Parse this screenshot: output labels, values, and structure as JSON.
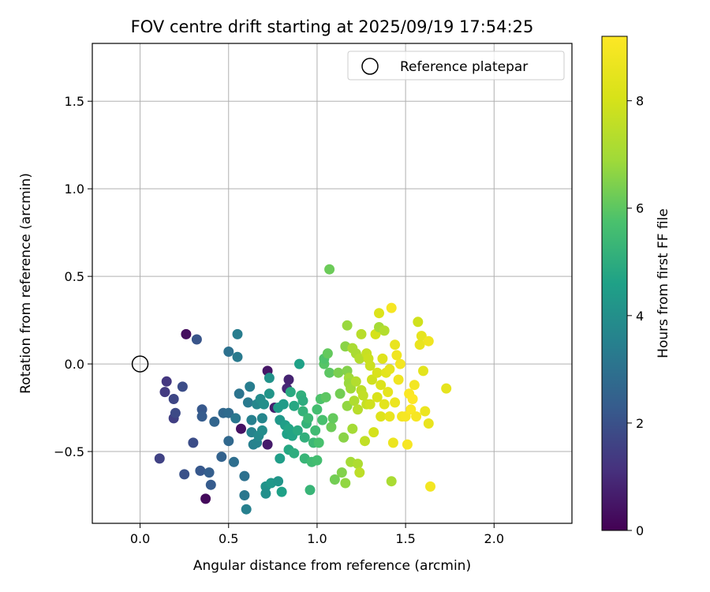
{
  "chart_data": {
    "type": "scatter",
    "title": "FOV centre drift starting at 2025/09/19 17:54:25",
    "xlabel": "Angular distance from reference (arcmin)",
    "ylabel": "Rotation from reference (arcmin)",
    "xlim": [
      -0.27,
      2.44
    ],
    "ylim": [
      -0.91,
      1.83
    ],
    "xticks": [
      0.0,
      0.5,
      1.0,
      1.5,
      2.0
    ],
    "xtick_labels": [
      "0.0",
      "0.5",
      "1.0",
      "1.5",
      "2.0"
    ],
    "yticks": [
      -0.5,
      0.0,
      0.5,
      1.0,
      1.5
    ],
    "ytick_labels": [
      "−0.5",
      "0.0",
      "0.5",
      "1.0",
      "1.5"
    ],
    "grid": true,
    "legend": {
      "position": "top-right",
      "label": "Reference platepar"
    },
    "reference_point": {
      "x": 0.0,
      "y": 0.0
    },
    "colorbar": {
      "label": "Hours from first FF file",
      "colormap": "viridis",
      "range": [
        0,
        9.2
      ],
      "ticks": [
        0,
        2,
        4,
        6,
        8
      ],
      "tick_labels": [
        "0",
        "2",
        "4",
        "6",
        "8"
      ]
    },
    "points": [
      {
        "x": 0.26,
        "y": 0.17,
        "h": 0.3
      },
      {
        "x": 0.37,
        "y": -0.77,
        "h": 0.2
      },
      {
        "x": 0.57,
        "y": -0.37,
        "h": 0.4
      },
      {
        "x": 0.72,
        "y": -0.04,
        "h": 0.5
      },
      {
        "x": 0.72,
        "y": -0.46,
        "h": 0.6
      },
      {
        "x": 0.76,
        "y": -0.25,
        "h": 0.7
      },
      {
        "x": 0.84,
        "y": -0.09,
        "h": 0.8
      },
      {
        "x": 0.83,
        "y": -0.14,
        "h": 0.9
      },
      {
        "x": 0.15,
        "y": -0.1,
        "h": 1.3
      },
      {
        "x": 0.14,
        "y": -0.16,
        "h": 1.4
      },
      {
        "x": 0.11,
        "y": -0.54,
        "h": 1.6
      },
      {
        "x": 0.19,
        "y": -0.31,
        "h": 1.5
      },
      {
        "x": 0.19,
        "y": -0.2,
        "h": 1.7
      },
      {
        "x": 0.2,
        "y": -0.28,
        "h": 1.8
      },
      {
        "x": 0.24,
        "y": -0.13,
        "h": 1.9
      },
      {
        "x": 0.25,
        "y": -0.63,
        "h": 2.0
      },
      {
        "x": 0.3,
        "y": -0.45,
        "h": 1.9
      },
      {
        "x": 0.32,
        "y": 0.14,
        "h": 2.1
      },
      {
        "x": 0.35,
        "y": -0.26,
        "h": 2.2
      },
      {
        "x": 0.35,
        "y": -0.3,
        "h": 2.3
      },
      {
        "x": 0.34,
        "y": -0.61,
        "h": 2.2
      },
      {
        "x": 0.39,
        "y": -0.62,
        "h": 2.4
      },
      {
        "x": 0.4,
        "y": -0.69,
        "h": 2.3
      },
      {
        "x": 0.42,
        "y": -0.33,
        "h": 2.6
      },
      {
        "x": 0.46,
        "y": -0.53,
        "h": 2.5
      },
      {
        "x": 0.47,
        "y": -0.28,
        "h": 2.7
      },
      {
        "x": 0.5,
        "y": -0.28,
        "h": 2.8
      },
      {
        "x": 0.5,
        "y": -0.44,
        "h": 2.7
      },
      {
        "x": 0.5,
        "y": 0.07,
        "h": 3.0
      },
      {
        "x": 0.53,
        "y": -0.56,
        "h": 2.9
      },
      {
        "x": 0.54,
        "y": -0.31,
        "h": 3.2
      },
      {
        "x": 0.55,
        "y": 0.17,
        "h": 3.4
      },
      {
        "x": 0.55,
        "y": 0.04,
        "h": 3.3
      },
      {
        "x": 0.56,
        "y": -0.17,
        "h": 3.1
      },
      {
        "x": 0.59,
        "y": -0.64,
        "h": 3.0
      },
      {
        "x": 0.59,
        "y": -0.75,
        "h": 3.2
      },
      {
        "x": 0.6,
        "y": -0.83,
        "h": 3.5
      },
      {
        "x": 0.61,
        "y": -0.22,
        "h": 3.3
      },
      {
        "x": 0.62,
        "y": -0.13,
        "h": 3.4
      },
      {
        "x": 0.63,
        "y": -0.32,
        "h": 3.5
      },
      {
        "x": 0.63,
        "y": -0.39,
        "h": 3.6
      },
      {
        "x": 0.64,
        "y": -0.46,
        "h": 3.5
      },
      {
        "x": 0.66,
        "y": -0.23,
        "h": 3.7
      },
      {
        "x": 0.66,
        "y": -0.45,
        "h": 3.6
      },
      {
        "x": 0.67,
        "y": -0.41,
        "h": 3.8
      },
      {
        "x": 0.68,
        "y": -0.2,
        "h": 3.9
      },
      {
        "x": 0.69,
        "y": -0.31,
        "h": 3.7
      },
      {
        "x": 0.69,
        "y": -0.38,
        "h": 3.9
      },
      {
        "x": 0.7,
        "y": -0.23,
        "h": 4.0
      },
      {
        "x": 0.71,
        "y": -0.7,
        "h": 4.1
      },
      {
        "x": 0.71,
        "y": -0.74,
        "h": 4.0
      },
      {
        "x": 0.73,
        "y": -0.17,
        "h": 4.2
      },
      {
        "x": 0.73,
        "y": -0.08,
        "h": 4.1
      },
      {
        "x": 0.74,
        "y": -0.68,
        "h": 4.3
      },
      {
        "x": 0.78,
        "y": -0.67,
        "h": 4.2
      },
      {
        "x": 0.78,
        "y": -0.25,
        "h": 4.4
      },
      {
        "x": 0.79,
        "y": -0.32,
        "h": 4.3
      },
      {
        "x": 0.79,
        "y": -0.54,
        "h": 4.5
      },
      {
        "x": 0.8,
        "y": -0.73,
        "h": 4.6
      },
      {
        "x": 0.81,
        "y": -0.23,
        "h": 4.4
      },
      {
        "x": 0.82,
        "y": -0.35,
        "h": 4.5
      },
      {
        "x": 0.83,
        "y": -0.4,
        "h": 4.6
      },
      {
        "x": 0.84,
        "y": -0.37,
        "h": 4.7
      },
      {
        "x": 0.84,
        "y": -0.49,
        "h": 4.8
      },
      {
        "x": 0.85,
        "y": -0.16,
        "h": 4.9
      },
      {
        "x": 0.86,
        "y": -0.41,
        "h": 4.7
      },
      {
        "x": 0.87,
        "y": -0.24,
        "h": 4.8
      },
      {
        "x": 0.87,
        "y": -0.51,
        "h": 5.0
      },
      {
        "x": 0.89,
        "y": -0.38,
        "h": 4.9
      },
      {
        "x": 0.9,
        "y": 0.0,
        "h": 4.6
      },
      {
        "x": 0.91,
        "y": -0.18,
        "h": 5.1
      },
      {
        "x": 0.92,
        "y": -0.21,
        "h": 5.0
      },
      {
        "x": 0.92,
        "y": -0.27,
        "h": 5.2
      },
      {
        "x": 0.93,
        "y": -0.42,
        "h": 5.1
      },
      {
        "x": 0.93,
        "y": -0.54,
        "h": 5.3
      },
      {
        "x": 0.94,
        "y": -0.34,
        "h": 5.2
      },
      {
        "x": 0.95,
        "y": -0.31,
        "h": 5.4
      },
      {
        "x": 0.96,
        "y": -0.72,
        "h": 5.3
      },
      {
        "x": 0.97,
        "y": -0.56,
        "h": 5.5
      },
      {
        "x": 0.98,
        "y": -0.45,
        "h": 5.4
      },
      {
        "x": 0.99,
        "y": -0.38,
        "h": 5.5
      },
      {
        "x": 1.0,
        "y": -0.26,
        "h": 5.6
      },
      {
        "x": 1.0,
        "y": -0.55,
        "h": 5.6
      },
      {
        "x": 1.01,
        "y": -0.45,
        "h": 5.7
      },
      {
        "x": 1.02,
        "y": -0.2,
        "h": 5.8
      },
      {
        "x": 1.03,
        "y": -0.32,
        "h": 5.7
      },
      {
        "x": 1.04,
        "y": 0.0,
        "h": 5.9
      },
      {
        "x": 1.04,
        "y": 0.03,
        "h": 5.8
      },
      {
        "x": 1.05,
        "y": -0.19,
        "h": 6.0
      },
      {
        "x": 1.06,
        "y": 0.06,
        "h": 6.1
      },
      {
        "x": 1.07,
        "y": -0.05,
        "h": 6.0
      },
      {
        "x": 1.07,
        "y": 0.54,
        "h": 6.2
      },
      {
        "x": 1.08,
        "y": -0.36,
        "h": 6.2
      },
      {
        "x": 1.09,
        "y": -0.31,
        "h": 6.1
      },
      {
        "x": 1.1,
        "y": -0.66,
        "h": 6.3
      },
      {
        "x": 1.12,
        "y": -0.05,
        "h": 6.4
      },
      {
        "x": 1.13,
        "y": -0.17,
        "h": 6.3
      },
      {
        "x": 1.14,
        "y": -0.62,
        "h": 6.5
      },
      {
        "x": 1.15,
        "y": -0.42,
        "h": 6.6
      },
      {
        "x": 1.16,
        "y": -0.68,
        "h": 6.7
      },
      {
        "x": 1.16,
        "y": 0.1,
        "h": 6.6
      },
      {
        "x": 1.17,
        "y": -0.24,
        "h": 6.7
      },
      {
        "x": 1.17,
        "y": -0.04,
        "h": 6.5
      },
      {
        "x": 1.17,
        "y": 0.22,
        "h": 6.8
      },
      {
        "x": 1.18,
        "y": -0.08,
        "h": 6.9
      },
      {
        "x": 1.18,
        "y": -0.11,
        "h": 6.8
      },
      {
        "x": 1.19,
        "y": -0.14,
        "h": 6.9
      },
      {
        "x": 1.19,
        "y": -0.56,
        "h": 7.0
      },
      {
        "x": 1.2,
        "y": 0.09,
        "h": 7.1
      },
      {
        "x": 1.2,
        "y": -0.37,
        "h": 7.0
      },
      {
        "x": 1.21,
        "y": -0.21,
        "h": 7.2
      },
      {
        "x": 1.22,
        "y": 0.06,
        "h": 7.1
      },
      {
        "x": 1.22,
        "y": -0.1,
        "h": 7.3
      },
      {
        "x": 1.23,
        "y": -0.57,
        "h": 7.2
      },
      {
        "x": 1.23,
        "y": -0.26,
        "h": 7.4
      },
      {
        "x": 1.24,
        "y": 0.03,
        "h": 7.3
      },
      {
        "x": 1.24,
        "y": -0.62,
        "h": 7.5
      },
      {
        "x": 1.25,
        "y": 0.17,
        "h": 7.4
      },
      {
        "x": 1.25,
        "y": -0.15,
        "h": 7.5
      },
      {
        "x": 1.26,
        "y": -0.18,
        "h": 7.6
      },
      {
        "x": 1.27,
        "y": -0.44,
        "h": 7.6
      },
      {
        "x": 1.28,
        "y": 0.06,
        "h": 7.7
      },
      {
        "x": 1.28,
        "y": -0.23,
        "h": 7.7
      },
      {
        "x": 1.29,
        "y": 0.03,
        "h": 7.8
      },
      {
        "x": 1.3,
        "y": -0.01,
        "h": 7.8
      },
      {
        "x": 1.3,
        "y": -0.23,
        "h": 7.9
      },
      {
        "x": 1.31,
        "y": -0.09,
        "h": 7.9
      },
      {
        "x": 1.32,
        "y": -0.39,
        "h": 8.0
      },
      {
        "x": 1.33,
        "y": 0.17,
        "h": 8.0
      },
      {
        "x": 1.34,
        "y": -0.05,
        "h": 8.1
      },
      {
        "x": 1.34,
        "y": -0.19,
        "h": 8.1
      },
      {
        "x": 1.35,
        "y": 0.29,
        "h": 8.2
      },
      {
        "x": 1.35,
        "y": 0.21,
        "h": 7.0
      },
      {
        "x": 1.36,
        "y": -0.12,
        "h": 8.2
      },
      {
        "x": 1.36,
        "y": -0.3,
        "h": 8.3
      },
      {
        "x": 1.37,
        "y": 0.03,
        "h": 8.3
      },
      {
        "x": 1.38,
        "y": 0.19,
        "h": 7.3
      },
      {
        "x": 1.38,
        "y": -0.23,
        "h": 8.4
      },
      {
        "x": 1.39,
        "y": -0.05,
        "h": 8.4
      },
      {
        "x": 1.4,
        "y": -0.16,
        "h": 8.5
      },
      {
        "x": 1.41,
        "y": -0.03,
        "h": 8.5
      },
      {
        "x": 1.41,
        "y": -0.3,
        "h": 8.6
      },
      {
        "x": 1.42,
        "y": 0.32,
        "h": 9.0
      },
      {
        "x": 1.42,
        "y": -0.67,
        "h": 7.1
      },
      {
        "x": 1.43,
        "y": -0.45,
        "h": 8.7
      },
      {
        "x": 1.44,
        "y": 0.11,
        "h": 8.6
      },
      {
        "x": 1.44,
        "y": -0.22,
        "h": 8.7
      },
      {
        "x": 1.45,
        "y": 0.05,
        "h": 8.8
      },
      {
        "x": 1.46,
        "y": -0.09,
        "h": 8.8
      },
      {
        "x": 1.47,
        "y": 0.0,
        "h": 8.9
      },
      {
        "x": 1.48,
        "y": -0.3,
        "h": 8.9
      },
      {
        "x": 1.5,
        "y": -0.3,
        "h": 9.0
      },
      {
        "x": 1.51,
        "y": -0.46,
        "h": 9.0
      },
      {
        "x": 1.52,
        "y": -0.17,
        "h": 9.1
      },
      {
        "x": 1.53,
        "y": -0.26,
        "h": 9.1
      },
      {
        "x": 1.54,
        "y": -0.2,
        "h": 9.2
      },
      {
        "x": 1.55,
        "y": -0.12,
        "h": 8.9
      },
      {
        "x": 1.56,
        "y": -0.3,
        "h": 9.0
      },
      {
        "x": 1.57,
        "y": 0.24,
        "h": 7.9
      },
      {
        "x": 1.58,
        "y": 0.11,
        "h": 8.6
      },
      {
        "x": 1.59,
        "y": 0.16,
        "h": 8.5
      },
      {
        "x": 1.6,
        "y": -0.04,
        "h": 8.4
      },
      {
        "x": 1.61,
        "y": -0.27,
        "h": 8.7
      },
      {
        "x": 1.63,
        "y": 0.13,
        "h": 8.8
      },
      {
        "x": 1.63,
        "y": -0.34,
        "h": 8.6
      },
      {
        "x": 1.64,
        "y": -0.7,
        "h": 8.9
      },
      {
        "x": 1.73,
        "y": -0.14,
        "h": 8.5
      }
    ]
  }
}
